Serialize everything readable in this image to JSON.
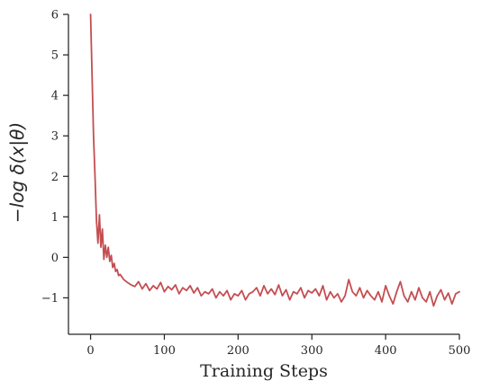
{
  "chart_data": {
    "type": "line",
    "title": "",
    "xlabel": "Training Steps",
    "ylabel": "−log δ(x|θ)",
    "xlim": [
      -30,
      500
    ],
    "ylim": [
      -1.9,
      6
    ],
    "xticks": [
      0,
      100,
      200,
      300,
      400,
      500
    ],
    "yticks": [
      -1,
      0,
      1,
      2,
      3,
      4,
      5,
      6
    ],
    "xtick_labels": [
      "0",
      "100",
      "200",
      "300",
      "400",
      "500"
    ],
    "ytick_labels": [
      "−1",
      "0",
      "1",
      "2",
      "3",
      "4",
      "5",
      "6"
    ],
    "grid": false,
    "legend": "none",
    "series": [
      {
        "color": "#c44e52",
        "x": [
          0,
          2,
          4,
          6,
          8,
          10,
          12,
          14,
          16,
          18,
          20,
          22,
          24,
          26,
          28,
          30,
          32,
          34,
          36,
          38,
          40,
          45,
          50,
          55,
          60,
          65,
          70,
          75,
          80,
          85,
          90,
          95,
          100,
          105,
          110,
          115,
          120,
          125,
          130,
          135,
          140,
          145,
          150,
          155,
          160,
          165,
          170,
          175,
          180,
          185,
          190,
          195,
          200,
          205,
          210,
          215,
          220,
          225,
          230,
          235,
          240,
          245,
          250,
          255,
          260,
          265,
          270,
          275,
          280,
          285,
          290,
          295,
          300,
          305,
          310,
          315,
          320,
          325,
          330,
          335,
          340,
          345,
          350,
          355,
          360,
          365,
          370,
          375,
          380,
          385,
          390,
          395,
          400,
          405,
          410,
          415,
          420,
          425,
          430,
          435,
          440,
          445,
          450,
          455,
          460,
          465,
          470,
          475,
          480,
          485,
          490,
          495,
          500
        ],
        "y": [
          6.0,
          4.5,
          3.0,
          2.0,
          0.9,
          0.35,
          1.05,
          0.25,
          0.7,
          -0.05,
          0.3,
          0.0,
          0.25,
          -0.1,
          0.05,
          -0.25,
          -0.15,
          -0.35,
          -0.3,
          -0.45,
          -0.42,
          -0.55,
          -0.62,
          -0.68,
          -0.72,
          -0.6,
          -0.78,
          -0.65,
          -0.82,
          -0.7,
          -0.78,
          -0.62,
          -0.85,
          -0.72,
          -0.8,
          -0.68,
          -0.9,
          -0.75,
          -0.82,
          -0.7,
          -0.88,
          -0.75,
          -0.95,
          -0.85,
          -0.9,
          -0.78,
          -1.0,
          -0.85,
          -0.95,
          -0.82,
          -1.05,
          -0.9,
          -0.95,
          -0.82,
          -1.05,
          -0.9,
          -0.85,
          -0.75,
          -0.95,
          -0.7,
          -0.9,
          -0.78,
          -0.92,
          -0.68,
          -0.95,
          -0.8,
          -1.05,
          -0.85,
          -0.9,
          -0.75,
          -1.0,
          -0.82,
          -0.88,
          -0.78,
          -0.95,
          -0.7,
          -1.05,
          -0.85,
          -1.0,
          -0.9,
          -1.1,
          -0.95,
          -0.55,
          -0.85,
          -0.95,
          -0.75,
          -1.0,
          -0.82,
          -0.95,
          -1.05,
          -0.85,
          -1.1,
          -0.7,
          -0.95,
          -1.15,
          -0.85,
          -0.6,
          -0.95,
          -1.1,
          -0.85,
          -1.05,
          -0.75,
          -1.0,
          -1.1,
          -0.85,
          -1.2,
          -0.95,
          -0.8,
          -1.05,
          -0.88,
          -1.15,
          -0.9,
          -0.85
        ]
      }
    ]
  }
}
